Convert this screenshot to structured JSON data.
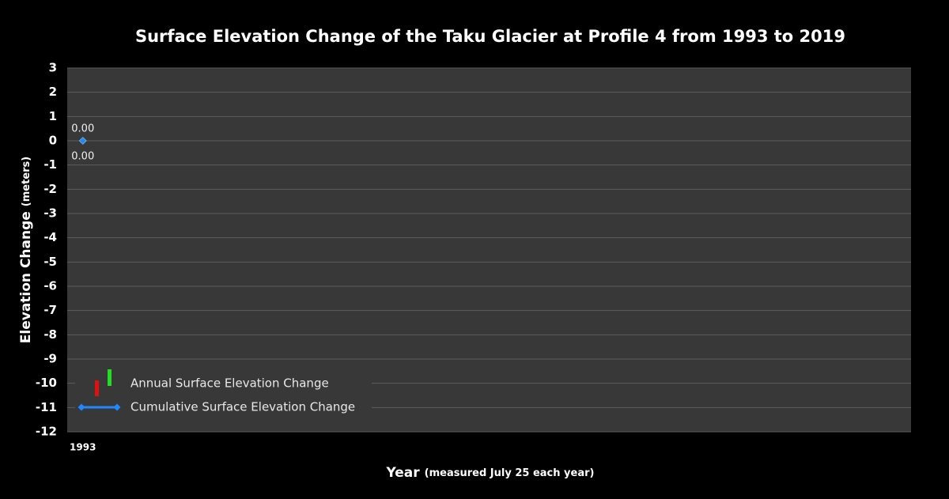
{
  "chart_data": {
    "type": "bar_line",
    "title": "Surface Elevation Change of the Taku Glacier at Profile 4 from 1993 to 2019",
    "y_label": "Elevation Change",
    "y_label_unit": "(meters)",
    "x_label": "Year",
    "x_label_note": "(measured July 25 each year)",
    "categories": [
      "1993",
      null,
      null,
      null,
      null,
      null,
      null,
      null,
      null,
      null,
      null,
      null,
      null,
      null,
      null,
      null,
      null,
      null,
      null,
      null,
      null,
      null,
      null,
      null,
      null,
      null,
      null
    ],
    "series": [
      {
        "name": "Annual Surface Elevation Change",
        "kind": "bar",
        "color": "#22dd22",
        "negative_color": "#e01010",
        "values": [
          0,
          null,
          null,
          null,
          null,
          null,
          null,
          null,
          null,
          null,
          null,
          null,
          null,
          null,
          null,
          null,
          null,
          null,
          null,
          null,
          null,
          null,
          null,
          null,
          null,
          null,
          null
        ],
        "value_labels": [
          "0.00",
          null,
          null,
          null,
          null,
          null,
          null,
          null,
          null,
          null,
          null,
          null,
          null,
          null,
          null,
          null,
          null,
          null,
          null,
          null,
          null,
          null,
          null,
          null,
          null,
          null,
          null
        ]
      },
      {
        "name": "Cumulative Surface Elevation Change",
        "kind": "line",
        "color": "#1e88ff",
        "values": [
          0,
          null,
          null,
          null,
          null,
          null,
          null,
          null,
          null,
          null,
          null,
          null,
          null,
          null,
          null,
          null,
          null,
          null,
          null,
          null,
          null,
          null,
          null,
          null,
          null,
          null,
          null
        ],
        "value_labels": [
          "0.00",
          null,
          null,
          null,
          null,
          null,
          null,
          null,
          null,
          null,
          null,
          null,
          null,
          null,
          null,
          null,
          null,
          null,
          null,
          null,
          null,
          null,
          null,
          null,
          null,
          null,
          null
        ]
      }
    ],
    "ylim": [
      -12,
      3
    ],
    "yticks": [
      -12,
      -11,
      -10,
      -9,
      -8,
      -7,
      -6,
      -5,
      -4,
      -3,
      -2,
      -1,
      0,
      1,
      2,
      3
    ],
    "grid": true,
    "legend": "lower left"
  }
}
